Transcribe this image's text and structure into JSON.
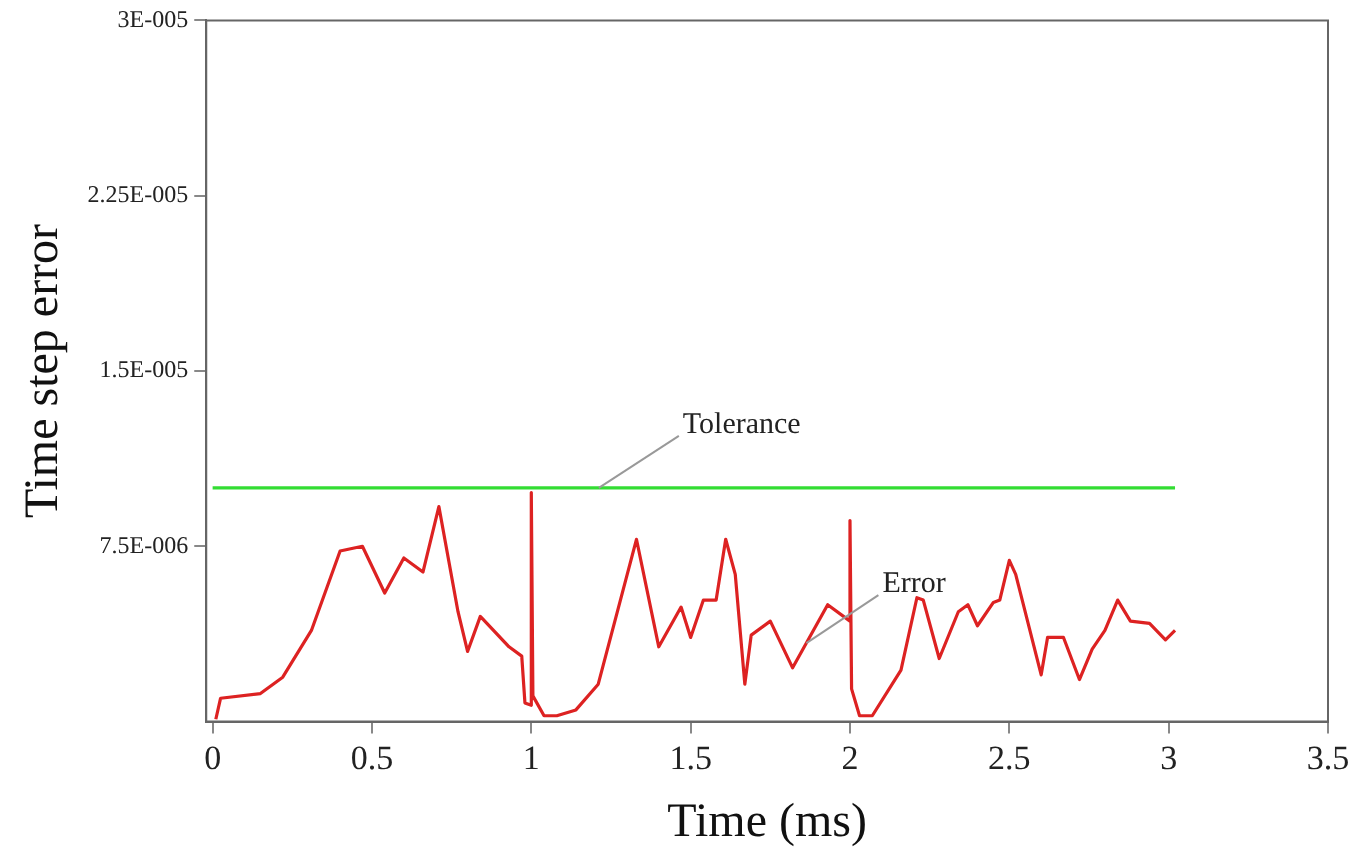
{
  "chart_data": {
    "type": "line",
    "xlabel": "Time (ms)",
    "ylabel": "Time step error",
    "xlim": [
      -0.02,
      3.5
    ],
    "xticks": [
      0,
      0.5,
      1,
      1.5,
      2,
      2.5,
      3,
      3.5
    ],
    "ylim": [
      0,
      3e-05
    ],
    "yticks": [
      {
        "value": 7.5e-06,
        "label": "7.5E-006"
      },
      {
        "value": 1.5e-05,
        "label": "1.5E-005"
      },
      {
        "value": 2.25e-05,
        "label": "2.25E-005"
      },
      {
        "value": 3e-05,
        "label": "3E-005"
      }
    ],
    "grid": false,
    "legend": false,
    "marker": "none",
    "line_style": "solid",
    "series": [
      {
        "name": "Tolerance",
        "color": "#33dd33",
        "x": [
          0,
          3.02
        ],
        "values": [
          1e-05,
          1e-05
        ]
      },
      {
        "name": "Error",
        "color": "#dd2222",
        "x": [
          0.01,
          0.025,
          0.15,
          0.22,
          0.31,
          0.4,
          0.47,
          0.54,
          0.6,
          0.66,
          0.71,
          0.77,
          0.8,
          0.84,
          0.93,
          0.97,
          0.98,
          1.0,
          1.0,
          1.005,
          1.04,
          1.08,
          1.14,
          1.21,
          1.33,
          1.4,
          1.47,
          1.5,
          1.54,
          1.58,
          1.61,
          1.64,
          1.67,
          1.69,
          1.75,
          1.82,
          1.93,
          2.0,
          2.0,
          2.005,
          2.03,
          2.07,
          2.16,
          2.21,
          2.23,
          2.28,
          2.34,
          2.37,
          2.4,
          2.45,
          2.47,
          2.5,
          2.52,
          2.6,
          2.62,
          2.67,
          2.72,
          2.76,
          2.8,
          2.84,
          2.88,
          2.94,
          2.99,
          3.02
        ],
        "values": [
          1e-07,
          1e-06,
          1.2e-06,
          1.9e-06,
          3.9e-06,
          7.3e-06,
          7.5e-06,
          5.5e-06,
          7e-06,
          6.4e-06,
          9.2e-06,
          4.7e-06,
          3e-06,
          4.5e-06,
          3.2e-06,
          2.8e-06,
          8e-07,
          7e-07,
          9.8e-06,
          1.1e-06,
          2.5e-07,
          2.5e-07,
          5e-07,
          1.6e-06,
          7.8e-06,
          3.2e-06,
          4.9e-06,
          3.6e-06,
          5.2e-06,
          5.2e-06,
          7.8e-06,
          6.3e-06,
          1.6e-06,
          3.7e-06,
          4.3e-06,
          2.3e-06,
          5e-06,
          4.3e-06,
          8.6e-06,
          1.4e-06,
          2.5e-07,
          2.5e-07,
          2.2e-06,
          5.3e-06,
          5.2e-06,
          2.7e-06,
          4.7e-06,
          5e-06,
          4.1e-06,
          5.1e-06,
          5.2e-06,
          6.9e-06,
          6.3e-06,
          2e-06,
          3.6e-06,
          3.6e-06,
          1.8e-06,
          3.1e-06,
          3.9e-06,
          5.2e-06,
          4.3e-06,
          4.2e-06,
          3.5e-06,
          3.9e-06
        ]
      }
    ]
  }
}
